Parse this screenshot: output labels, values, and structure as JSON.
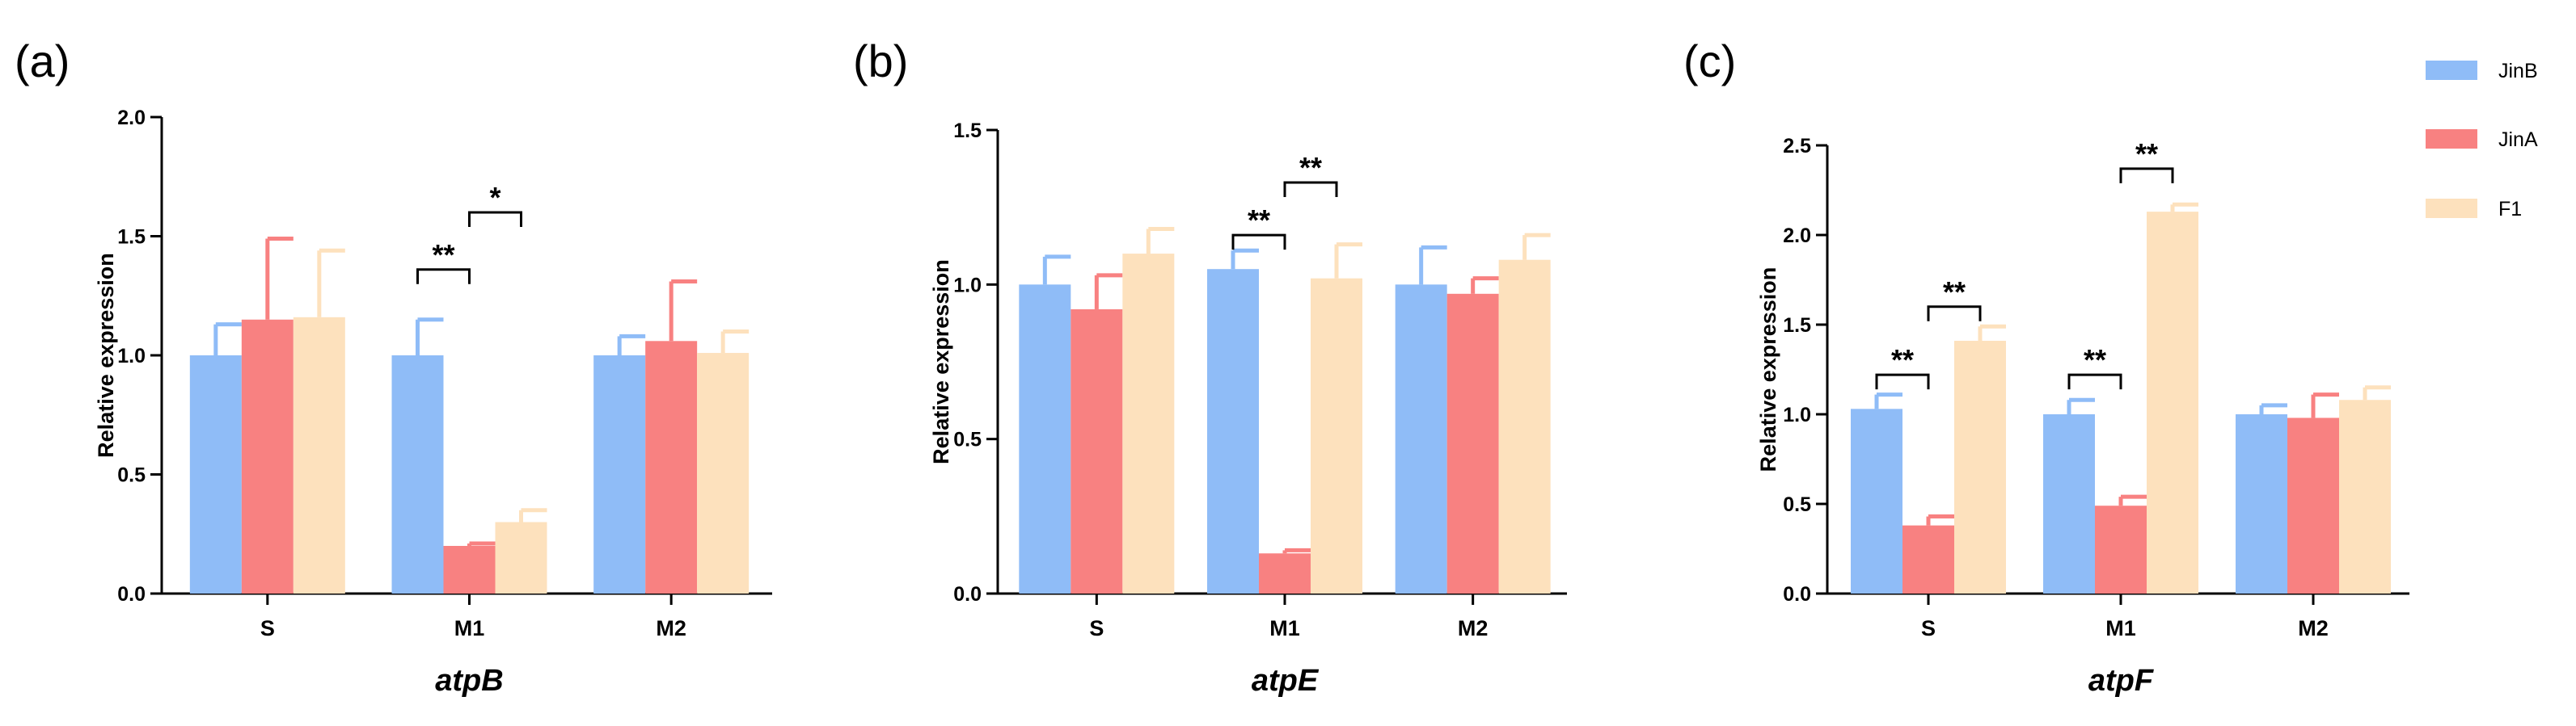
{
  "chart_data": [
    {
      "type": "bar",
      "panel": "(a)",
      "title": "",
      "xlabel": "atpB",
      "ylabel": "Relative expression",
      "ylim": [
        0,
        2.0
      ],
      "yticks": [
        "0.0",
        "0.5",
        "1.0",
        "1.5",
        "2.0"
      ],
      "categories": [
        "S",
        "M1",
        "M2"
      ],
      "series": [
        {
          "name": "JinB",
          "values": [
            1.0,
            1.0,
            1.0
          ],
          "errors": [
            0.13,
            0.15,
            0.08
          ]
        },
        {
          "name": "JinA",
          "values": [
            1.15,
            0.2,
            1.06
          ],
          "errors": [
            0.34,
            0.01,
            0.25
          ]
        },
        {
          "name": "F1",
          "values": [
            1.16,
            0.3,
            1.01
          ],
          "errors": [
            0.28,
            0.05,
            0.09
          ]
        }
      ],
      "significance": [
        {
          "category": "M1",
          "from": 0,
          "to": 1,
          "label": "**",
          "level": 1.36
        },
        {
          "category": "M1",
          "from": 1,
          "to": 2,
          "label": "*",
          "level": 1.6
        }
      ]
    },
    {
      "type": "bar",
      "panel": "(b)",
      "title": "",
      "xlabel": "atpE",
      "ylabel": "Relative expression",
      "ylim": [
        0,
        1.5
      ],
      "yticks": [
        "0.0",
        "0.5",
        "1.0",
        "1.5"
      ],
      "categories": [
        "S",
        "M1",
        "M2"
      ],
      "series": [
        {
          "name": "JinB",
          "values": [
            1.0,
            1.05,
            1.0
          ],
          "errors": [
            0.09,
            0.06,
            0.12
          ]
        },
        {
          "name": "JinA",
          "values": [
            0.92,
            0.13,
            0.97
          ],
          "errors": [
            0.11,
            0.01,
            0.05
          ]
        },
        {
          "name": "F1",
          "values": [
            1.1,
            1.02,
            1.08
          ],
          "errors": [
            0.08,
            0.11,
            0.08
          ]
        }
      ],
      "significance": [
        {
          "category": "M1",
          "from": 0,
          "to": 1,
          "label": "**",
          "level": 1.16
        },
        {
          "category": "M1",
          "from": 1,
          "to": 2,
          "label": "**",
          "level": 1.33
        }
      ]
    },
    {
      "type": "bar",
      "panel": "(c)",
      "title": "",
      "xlabel": "atpF",
      "ylabel": "Relative expression",
      "ylim": [
        0,
        2.5
      ],
      "yticks": [
        "0.0",
        "0.5",
        "1.0",
        "1.5",
        "2.0",
        "2.5"
      ],
      "categories": [
        "S",
        "M1",
        "M2"
      ],
      "series": [
        {
          "name": "JinB",
          "values": [
            1.03,
            1.0,
            1.0
          ],
          "errors": [
            0.08,
            0.08,
            0.05
          ]
        },
        {
          "name": "JinA",
          "values": [
            0.38,
            0.49,
            0.98
          ],
          "errors": [
            0.05,
            0.05,
            0.13
          ]
        },
        {
          "name": "F1",
          "values": [
            1.41,
            2.13,
            1.08
          ],
          "errors": [
            0.08,
            0.04,
            0.07
          ]
        }
      ],
      "significance": [
        {
          "category": "S",
          "from": 0,
          "to": 1,
          "label": "**",
          "level": 1.22
        },
        {
          "category": "S",
          "from": 1,
          "to": 2,
          "label": "**",
          "level": 1.6
        },
        {
          "category": "M1",
          "from": 0,
          "to": 1,
          "label": "**",
          "level": 1.22
        },
        {
          "category": "M1",
          "from": 1,
          "to": 2,
          "label": "**",
          "level": 2.37
        }
      ]
    }
  ],
  "legend": [
    {
      "name": "JinB",
      "color": "#8fbcf7"
    },
    {
      "name": "JinA",
      "color": "#f88181"
    },
    {
      "name": "F1",
      "color": "#fde1bd"
    }
  ],
  "colors": {
    "JinB": "#8fbcf7",
    "JinA": "#f88181",
    "F1": "#fde1bd",
    "axis": "#000000"
  }
}
